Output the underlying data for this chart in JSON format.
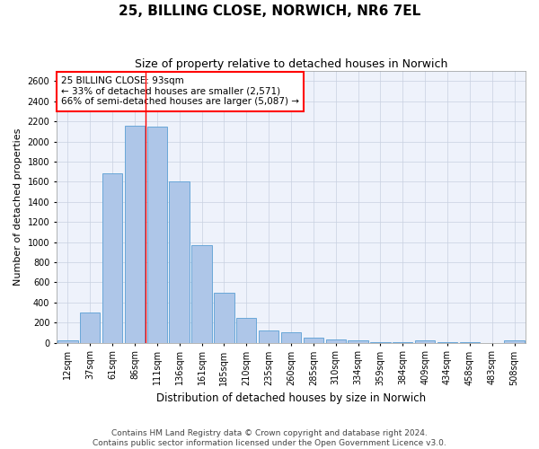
{
  "title": "25, BILLING CLOSE, NORWICH, NR6 7EL",
  "subtitle": "Size of property relative to detached houses in Norwich",
  "xlabel": "Distribution of detached houses by size in Norwich",
  "ylabel": "Number of detached properties",
  "categories": [
    "12sqm",
    "37sqm",
    "61sqm",
    "86sqm",
    "111sqm",
    "136sqm",
    "161sqm",
    "185sqm",
    "210sqm",
    "235sqm",
    "260sqm",
    "285sqm",
    "310sqm",
    "334sqm",
    "359sqm",
    "384sqm",
    "409sqm",
    "434sqm",
    "458sqm",
    "483sqm",
    "508sqm"
  ],
  "values": [
    20,
    300,
    1680,
    2160,
    2150,
    1600,
    970,
    500,
    245,
    120,
    100,
    50,
    30,
    20,
    10,
    10,
    20,
    10,
    10,
    0,
    20
  ],
  "bar_color": "#aec6e8",
  "bar_edge_color": "#5a9fd4",
  "vline_color": "red",
  "vline_x": 3.5,
  "annotation_text": "25 BILLING CLOSE: 93sqm\n← 33% of detached houses are smaller (2,571)\n66% of semi-detached houses are larger (5,087) →",
  "annotation_box_color": "white",
  "annotation_box_edge_color": "red",
  "ylim": [
    0,
    2700
  ],
  "yticks": [
    0,
    200,
    400,
    600,
    800,
    1000,
    1200,
    1400,
    1600,
    1800,
    2000,
    2200,
    2400,
    2600
  ],
  "grid_color": "#c8d0e0",
  "bg_color": "#eef2fb",
  "footer_line1": "Contains HM Land Registry data © Crown copyright and database right 2024.",
  "footer_line2": "Contains public sector information licensed under the Open Government Licence v3.0.",
  "title_fontsize": 11,
  "subtitle_fontsize": 9,
  "xlabel_fontsize": 8.5,
  "ylabel_fontsize": 8,
  "tick_fontsize": 7,
  "annotation_fontsize": 7.5,
  "footer_fontsize": 6.5
}
